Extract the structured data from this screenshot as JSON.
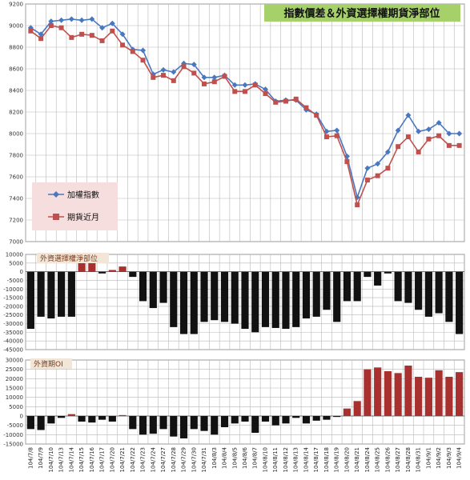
{
  "colors": {
    "index_line": "#4a78c0",
    "futures_line": "#c0504d",
    "net_bar": "#111111",
    "oi_bar": "#a8302e",
    "title_bg": "#a6d06a",
    "legend_bg": "#f6dede",
    "panel_title_bg": "#f2e6d8",
    "grid": "#b8b8b8"
  },
  "chart_data": [
    {
      "type": "line",
      "title": "指數價差＆外資選擇權期貨淨部位",
      "xlabel": "",
      "ylabel": "",
      "ylim": [
        7000,
        9200
      ],
      "yticks": [
        7000,
        7200,
        7400,
        7600,
        7800,
        8000,
        8200,
        8400,
        8600,
        8800,
        9000,
        9200
      ],
      "legend": "center-left",
      "grid": true,
      "categories": [
        "104/7/8",
        "104/7/9",
        "104/7/10",
        "104/7/13",
        "104/7/14",
        "104/7/15",
        "104/7/16",
        "104/7/17",
        "104/7/20",
        "104/7/21",
        "104/7/22",
        "104/7/23",
        "104/7/24",
        "104/7/27",
        "104/7/28",
        "104/7/29",
        "104/7/30",
        "104/7/31",
        "104/8/3",
        "104/8/4",
        "104/8/5",
        "104/8/6",
        "104/8/7",
        "104/8/10",
        "104/8/11",
        "104/8/12",
        "104/8/13",
        "104/8/14",
        "104/8/17",
        "104/8/18",
        "104/8/19",
        "104/8/20",
        "104/8/21",
        "104/8/24",
        "104/8/25",
        "104/8/26",
        "104/8/27",
        "104/8/28",
        "104/8/31",
        "104/9/1",
        "104/9/2",
        "104/9/3",
        "104/9/4"
      ],
      "series": [
        {
          "name": "加權指數",
          "values": [
            8980,
            8920,
            9040,
            9050,
            9060,
            9050,
            9060,
            8980,
            9020,
            8920,
            8780,
            8770,
            8550,
            8590,
            8570,
            8650,
            8640,
            8520,
            8520,
            8540,
            8450,
            8450,
            8460,
            8410,
            8300,
            8310,
            8310,
            8220,
            8180,
            8020,
            8030,
            7790,
            7410,
            7680,
            7720,
            7830,
            8030,
            8170,
            8020,
            8040,
            8100,
            8000,
            8000
          ]
        },
        {
          "name": "期貨近月",
          "values": [
            8950,
            8880,
            9000,
            8980,
            8890,
            8920,
            8910,
            8860,
            8950,
            8820,
            8760,
            8680,
            8520,
            8540,
            8490,
            8620,
            8560,
            8460,
            8480,
            8530,
            8390,
            8390,
            8450,
            8370,
            8290,
            8300,
            8320,
            8240,
            8170,
            7970,
            7980,
            7740,
            7340,
            7570,
            7610,
            7680,
            7880,
            7970,
            7830,
            7950,
            7980,
            7890,
            7890
          ]
        }
      ]
    },
    {
      "type": "bar",
      "title": "外資選擇權淨部位",
      "ylim": [
        -45000,
        10000
      ],
      "yticks": [
        10000,
        5000,
        0,
        -5000,
        -10000,
        -15000,
        -20000,
        -25000,
        -30000,
        -35000,
        -40000,
        -45000
      ],
      "grid": true,
      "series": [
        {
          "name": "外資選擇權淨部位",
          "values": [
            -33000,
            -26000,
            -27000,
            -26000,
            -26000,
            5000,
            5000,
            -1000,
            1000,
            3000,
            -3000,
            -17000,
            -21000,
            -18000,
            -32000,
            -36000,
            -36000,
            -29000,
            -28000,
            -29000,
            -30000,
            -33000,
            -35000,
            -32000,
            -32500,
            -33000,
            -32000,
            -27000,
            -26000,
            -22000,
            -29000,
            -17000,
            -17000,
            -3000,
            -8000,
            -1000,
            -17000,
            -18000,
            -22000,
            -26000,
            -24000,
            -29000,
            -36000
          ]
        }
      ]
    },
    {
      "type": "bar",
      "title": "外資期OI",
      "ylim": [
        -15000,
        30000
      ],
      "yticks": [
        30000,
        25000,
        20000,
        15000,
        10000,
        5000,
        0,
        -5000,
        -10000,
        -15000
      ],
      "grid": true,
      "series": [
        {
          "name": "外資期OI",
          "values": [
            -7000,
            -7500,
            -4000,
            -1000,
            1000,
            -3000,
            -3500,
            -2000,
            -3000,
            500,
            -7000,
            -10000,
            -9500,
            -7000,
            -11000,
            -12000,
            -7000,
            -8000,
            -10000,
            -6000,
            -4000,
            -3000,
            -9000,
            -3000,
            -5000,
            -4000,
            -1000,
            -4000,
            -2500,
            -2000,
            -500,
            4000,
            8000,
            25000,
            26000,
            24000,
            23000,
            27000,
            21000,
            20500,
            24500,
            21000,
            23500
          ]
        }
      ]
    }
  ]
}
